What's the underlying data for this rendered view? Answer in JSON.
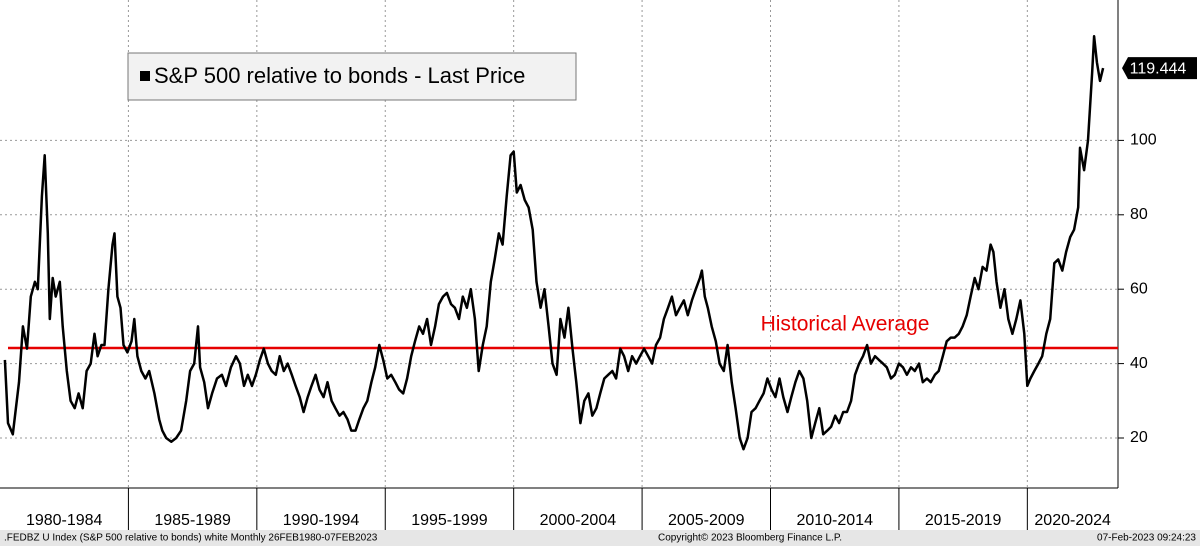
{
  "chart_data": {
    "type": "line",
    "x": [
      1980.19,
      1980.31,
      1980.5,
      1980.74,
      1980.89,
      1981.05,
      1981.2,
      1981.36,
      1981.47,
      1981.63,
      1981.74,
      1981.86,
      1981.94,
      1982.05,
      1982.17,
      1982.33,
      1982.44,
      1982.6,
      1982.75,
      1982.91,
      1983.06,
      1983.22,
      1983.37,
      1983.53,
      1983.68,
      1983.8,
      1983.95,
      1984.07,
      1984.22,
      1984.38,
      1984.46,
      1984.57,
      1984.69,
      1984.81,
      1984.96,
      1985.12,
      1985.23,
      1985.35,
      1985.5,
      1985.66,
      1985.81,
      1986.01,
      1986.2,
      1986.32,
      1986.47,
      1986.67,
      1986.86,
      1987.05,
      1987.25,
      1987.4,
      1987.56,
      1987.71,
      1987.79,
      1987.95,
      1988.1,
      1988.26,
      1988.45,
      1988.64,
      1988.8,
      1988.99,
      1989.19,
      1989.34,
      1989.5,
      1989.65,
      1989.81,
      1989.96,
      1990.12,
      1990.27,
      1990.43,
      1990.58,
      1990.74,
      1990.89,
      1991.05,
      1991.2,
      1991.36,
      1991.51,
      1991.67,
      1991.82,
      1991.98,
      1992.13,
      1992.29,
      1992.44,
      1992.6,
      1992.75,
      1992.91,
      1993.06,
      1993.22,
      1993.37,
      1993.53,
      1993.68,
      1993.84,
      1993.99,
      1994.15,
      1994.3,
      1994.46,
      1994.61,
      1994.77,
      1994.92,
      1995.08,
      1995.23,
      1995.39,
      1995.54,
      1995.7,
      1995.85,
      1996.01,
      1996.16,
      1996.32,
      1996.47,
      1996.63,
      1996.78,
      1996.94,
      1997.09,
      1997.25,
      1997.4,
      1997.56,
      1997.71,
      1997.87,
      1998.02,
      1998.18,
      1998.33,
      1998.49,
      1998.64,
      1998.8,
      1998.95,
      1999.11,
      1999.26,
      1999.42,
      1999.57,
      1999.73,
      1999.88,
      2000.0,
      2000.12,
      2000.27,
      2000.43,
      2000.58,
      2000.74,
      2000.89,
      2001.05,
      2001.2,
      2001.36,
      2001.51,
      2001.67,
      2001.82,
      2001.98,
      2002.13,
      2002.29,
      2002.44,
      2002.6,
      2002.75,
      2002.91,
      2003.06,
      2003.22,
      2003.37,
      2003.53,
      2003.68,
      2003.84,
      2003.99,
      2004.15,
      2004.3,
      2004.46,
      2004.61,
      2004.77,
      2004.92,
      2005.08,
      2005.24,
      2005.39,
      2005.54,
      2005.7,
      2005.85,
      2006.01,
      2006.16,
      2006.32,
      2006.47,
      2006.63,
      2006.78,
      2006.94,
      2007.09,
      2007.25,
      2007.33,
      2007.44,
      2007.56,
      2007.71,
      2007.87,
      2008.02,
      2008.18,
      2008.33,
      2008.49,
      2008.64,
      2008.8,
      2008.95,
      2009.11,
      2009.26,
      2009.42,
      2009.57,
      2009.73,
      2009.88,
      2010.04,
      2010.19,
      2010.35,
      2010.5,
      2010.66,
      2010.81,
      2010.97,
      2011.12,
      2011.28,
      2011.43,
      2011.59,
      2011.74,
      2011.9,
      2012.05,
      2012.21,
      2012.36,
      2012.52,
      2012.67,
      2012.83,
      2012.98,
      2013.14,
      2013.29,
      2013.45,
      2013.6,
      2013.76,
      2013.91,
      2014.07,
      2014.22,
      2014.38,
      2014.53,
      2014.69,
      2014.84,
      2015.0,
      2015.16,
      2015.31,
      2015.47,
      2015.62,
      2015.78,
      2015.93,
      2016.09,
      2016.24,
      2016.4,
      2016.55,
      2016.71,
      2016.86,
      2017.02,
      2017.17,
      2017.33,
      2017.48,
      2017.64,
      2017.79,
      2017.95,
      2018.1,
      2018.26,
      2018.41,
      2018.57,
      2018.68,
      2018.8,
      2018.95,
      2019.11,
      2019.26,
      2019.42,
      2019.57,
      2019.73,
      2019.88,
      2020.0,
      2020.12,
      2020.27,
      2020.43,
      2020.58,
      2020.74,
      2020.89,
      2021.05,
      2021.2,
      2021.36,
      2021.51,
      2021.67,
      2021.82,
      2021.98,
      2022.05,
      2022.21,
      2022.36,
      2022.52,
      2022.6,
      2022.71,
      2022.83,
      2022.95
    ],
    "series": [
      {
        "name": "S&P 500 relative to bonds - Last Price",
        "color": "#000000",
        "values": [
          41,
          24,
          21,
          35,
          50,
          44,
          58,
          62,
          60,
          85,
          96,
          75,
          52,
          63,
          58,
          62,
          50,
          38,
          30,
          28,
          32,
          28,
          38,
          40,
          48,
          42,
          45,
          45,
          60,
          72,
          75,
          58,
          55,
          45,
          43,
          46,
          52,
          42,
          38,
          36,
          38,
          32,
          25,
          22,
          20,
          19,
          20,
          22,
          30,
          38,
          40,
          50,
          39,
          35,
          28,
          32,
          36,
          37,
          34,
          39,
          42,
          40,
          34,
          37,
          34,
          37,
          41,
          44,
          40,
          38,
          37,
          42,
          38,
          40,
          37,
          34,
          31,
          27,
          31,
          34,
          37,
          33,
          31,
          35,
          30,
          28,
          26,
          27,
          25,
          22,
          22,
          25,
          28,
          30,
          35,
          39,
          45,
          41,
          36,
          37,
          35,
          33,
          32,
          36,
          42,
          46,
          50,
          48,
          52,
          45,
          50,
          56,
          58,
          59,
          56,
          55,
          52,
          58,
          55,
          60,
          52,
          38,
          45,
          50,
          62,
          68,
          75,
          72,
          85,
          96,
          97,
          86,
          88,
          84,
          82,
          76,
          62,
          55,
          60,
          50,
          40,
          37,
          52,
          47,
          55,
          44,
          35,
          24,
          30,
          32,
          26,
          28,
          32,
          36,
          37,
          38,
          36,
          44,
          42,
          38,
          42,
          40,
          42,
          44,
          42,
          40,
          45,
          47,
          52,
          55,
          58,
          53,
          55,
          57,
          53,
          57,
          60,
          63,
          65,
          58,
          55,
          50,
          46,
          40,
          38,
          45,
          35,
          28,
          20,
          17,
          20,
          27,
          28,
          30,
          32,
          36,
          33,
          31,
          36,
          31,
          27,
          31,
          35,
          38,
          36,
          30,
          20,
          24,
          28,
          21,
          22,
          23,
          26,
          24,
          27,
          27,
          30,
          37,
          40,
          42,
          45,
          40,
          42,
          41,
          40,
          39,
          36,
          37,
          40,
          39,
          37,
          39,
          38,
          40,
          35,
          36,
          35,
          37,
          38,
          42,
          46,
          47,
          47,
          48,
          50,
          53,
          58,
          63,
          60,
          66,
          65,
          72,
          70,
          62,
          55,
          60,
          52,
          48,
          52,
          57,
          48,
          34,
          36,
          38,
          40,
          42,
          48,
          52,
          67,
          68,
          65,
          70,
          74,
          76,
          82,
          98,
          92,
          100,
          118,
          128,
          121,
          116,
          119.444
        ]
      }
    ],
    "xlim": [
      1980,
      2023.53
    ],
    "xticks": [
      1985,
      1990,
      1995,
      2000,
      2005,
      2010,
      2015,
      2020
    ],
    "x_period_labels": [
      "1980-1984",
      "1985-1989",
      "1990-1994",
      "1995-1999",
      "2000-2004",
      "2005-2009",
      "2010-2014",
      "2015-2019",
      "2020-2024"
    ],
    "ylim": [
      6.56,
      137.74
    ],
    "yticks": [
      20,
      40,
      60,
      80,
      100
    ],
    "grid": true,
    "legend": "top-left",
    "reference_line": {
      "value": 44.2,
      "label": "Historical Average",
      "color": "#e60000"
    }
  },
  "footer": {
    "left": ".FEDBZ U Index (S&P 500 relative to bonds) white  Monthly 26FEB1980-07FEB2023",
    "center": "Copyright© 2023 Bloomberg Finance L.P.",
    "right": "07-Feb-2023 09:24:23"
  }
}
